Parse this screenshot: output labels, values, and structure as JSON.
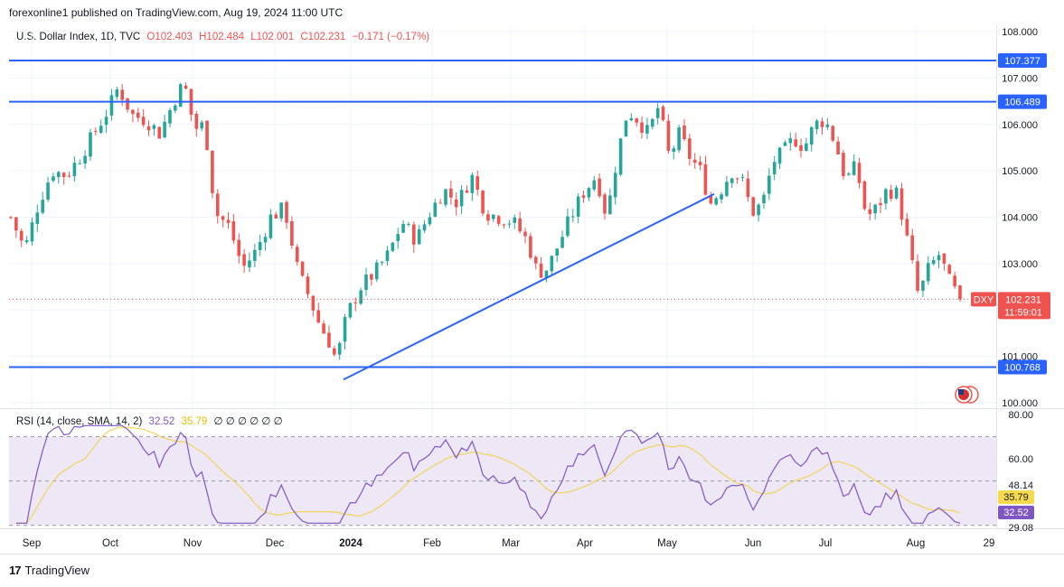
{
  "header": {
    "published": "forexonline1 published on TradingView.com, Aug 19, 2024 11:00 UTC"
  },
  "legend": {
    "symbol": "U.S. Dollar Index, 1D, TVC",
    "open": "O102.403",
    "high": "H102.484",
    "low": "L102.001",
    "close": "C102.231",
    "change": "−0.171 (−0.17%)"
  },
  "rsi_legend": {
    "label": "RSI (14, close, SMA, 14, 2)",
    "rsi_value": "32.52",
    "sma_value": "35.79",
    "placeholders": "∅ ∅ ∅ ∅ ∅ ∅"
  },
  "footer": {
    "brand": "TradingView",
    "logo": "17"
  },
  "colors": {
    "up": "#26a69a",
    "down": "#ef5350",
    "level": "#2962ff",
    "rsi": "#7e57c2",
    "rsi_sma": "#f0d55a",
    "rsi_band": "#ede7f6"
  },
  "chart_data": {
    "type": "candlestick",
    "symbol": "DXY",
    "ylim": [
      100.0,
      108.0
    ],
    "price_ticks": [
      "108.000",
      "107.000",
      "106.000",
      "105.000",
      "104.000",
      "103.000",
      "101.000",
      "100.000"
    ],
    "x_ticks": [
      "Sep",
      "Oct",
      "Nov",
      "Dec",
      "2024",
      "Feb",
      "Mar",
      "Apr",
      "May",
      "Jun",
      "Jul",
      "Aug",
      "29"
    ],
    "horizontal_levels": [
      {
        "label": "107.377",
        "value": 107.377
      },
      {
        "label": "106.489",
        "value": 106.489
      },
      {
        "label": "100.768",
        "value": 100.768
      }
    ],
    "trendline": {
      "from": {
        "date": "Dec 28",
        "value": 100.5
      },
      "to": {
        "date": "May 15",
        "value": 104.5
      }
    },
    "last_price": {
      "symbol": "DXY",
      "value": "102.231",
      "countdown": "11:59:01",
      "price": 102.231
    },
    "close_path": [
      [
        0,
        104.0
      ],
      [
        8,
        103.3
      ],
      [
        16,
        104.3
      ],
      [
        24,
        105.0
      ],
      [
        32,
        104.9
      ],
      [
        40,
        105.3
      ],
      [
        48,
        105.8
      ],
      [
        56,
        106.3
      ],
      [
        62,
        106.8
      ],
      [
        70,
        106.2
      ],
      [
        78,
        106.1
      ],
      [
        86,
        105.8
      ],
      [
        94,
        106.5
      ],
      [
        100,
        106.9
      ],
      [
        106,
        105.9
      ],
      [
        112,
        106.0
      ],
      [
        118,
        104.1
      ],
      [
        126,
        103.8
      ],
      [
        134,
        102.9
      ],
      [
        142,
        103.3
      ],
      [
        150,
        104.0
      ],
      [
        158,
        104.2
      ],
      [
        166,
        102.8
      ],
      [
        172,
        102.3
      ],
      [
        178,
        101.7
      ],
      [
        184,
        101.3
      ],
      [
        188,
        100.9
      ],
      [
        194,
        101.9
      ],
      [
        202,
        102.5
      ],
      [
        210,
        102.8
      ],
      [
        218,
        103.2
      ],
      [
        226,
        103.9
      ],
      [
        234,
        103.5
      ],
      [
        242,
        104.1
      ],
      [
        250,
        104.6
      ],
      [
        258,
        104.3
      ],
      [
        266,
        104.9
      ],
      [
        274,
        104.1
      ],
      [
        282,
        104.0
      ],
      [
        290,
        103.9
      ],
      [
        298,
        103.5
      ],
      [
        304,
        102.8
      ],
      [
        310,
        102.9
      ],
      [
        316,
        103.4
      ],
      [
        322,
        103.9
      ],
      [
        330,
        104.5
      ],
      [
        338,
        104.9
      ],
      [
        344,
        104.0
      ],
      [
        350,
        105.3
      ],
      [
        356,
        106.3
      ],
      [
        362,
        106.1
      ],
      [
        368,
        105.8
      ],
      [
        374,
        106.4
      ],
      [
        380,
        105.3
      ],
      [
        386,
        105.8
      ],
      [
        392,
        105.3
      ],
      [
        398,
        105.0
      ],
      [
        404,
        104.3
      ],
      [
        410,
        104.6
      ],
      [
        416,
        105.0
      ],
      [
        422,
        104.8
      ],
      [
        428,
        104.1
      ],
      [
        434,
        104.3
      ],
      [
        440,
        105.2
      ],
      [
        446,
        105.4
      ],
      [
        452,
        105.7
      ],
      [
        458,
        105.5
      ],
      [
        464,
        106.0
      ],
      [
        470,
        106.1
      ],
      [
        476,
        105.6
      ],
      [
        482,
        104.8
      ],
      [
        488,
        105.1
      ],
      [
        494,
        104.0
      ],
      [
        500,
        104.2
      ],
      [
        506,
        104.6
      ],
      [
        512,
        104.5
      ],
      [
        518,
        103.4
      ],
      [
        524,
        102.3
      ],
      [
        530,
        102.9
      ],
      [
        536,
        103.2
      ],
      [
        542,
        102.6
      ],
      [
        548,
        102.2
      ]
    ]
  },
  "rsi_data": {
    "ylim": [
      29.08,
      80.0
    ],
    "ticks": [
      "80.00",
      "60.00",
      "48.14",
      "29.08"
    ],
    "band": [
      30,
      70
    ],
    "midline": 50,
    "current": {
      "rsi": "32.52",
      "sma": "35.79"
    }
  }
}
